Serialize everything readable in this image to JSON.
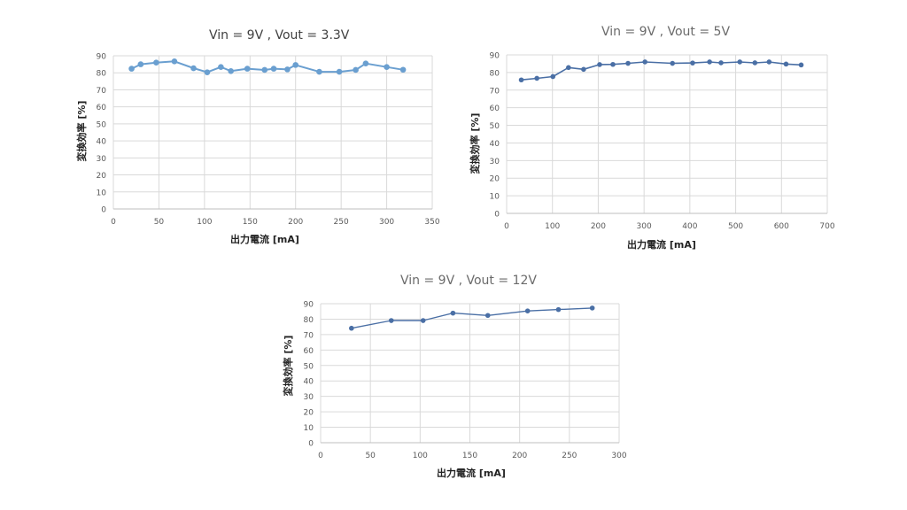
{
  "chart_data": [
    {
      "type": "line",
      "title": "Vin = 9V , Vout = 3.3V",
      "xlabel": "出力電流 [mA]",
      "ylabel": "変換効率 [%]",
      "xlim": [
        0,
        350
      ],
      "ylim": [
        0,
        90
      ],
      "xticks": [
        0,
        50,
        100,
        150,
        200,
        250,
        300,
        350
      ],
      "yticks": [
        0,
        10,
        20,
        30,
        40,
        50,
        60,
        70,
        80,
        90
      ],
      "grid": true,
      "legend": "none",
      "color": "#6a9fd0",
      "series": [
        {
          "name": "Vout = 3.3V",
          "x": [
            20,
            30,
            47,
            67,
            88,
            103,
            118,
            129,
            147,
            166,
            176,
            191,
            200,
            226,
            248,
            266,
            277,
            300,
            318
          ],
          "values": [
            82.4,
            85.0,
            86.0,
            86.7,
            82.7,
            80.3,
            83.4,
            81.0,
            82.4,
            81.7,
            82.4,
            82.0,
            84.6,
            80.6,
            80.6,
            81.7,
            85.5,
            83.4,
            81.8
          ]
        }
      ]
    },
    {
      "type": "line",
      "title": "Vin = 9V , Vout = 5V",
      "xlabel": "出力電流 [mA]",
      "ylabel": "変換効率 [%]",
      "xlim": [
        0,
        700
      ],
      "ylim": [
        0,
        90
      ],
      "xticks": [
        0,
        100,
        200,
        300,
        400,
        500,
        600,
        700
      ],
      "yticks": [
        0,
        10,
        20,
        30,
        40,
        50,
        60,
        70,
        80,
        90
      ],
      "grid": true,
      "legend": "none",
      "color": "#4a6fa5",
      "series": [
        {
          "name": "Vout = 5V",
          "x": [
            32,
            66,
            101,
            135,
            168,
            203,
            232,
            265,
            302,
            362,
            406,
            443,
            468,
            509,
            542,
            573,
            610,
            643
          ],
          "values": [
            75.8,
            76.7,
            77.7,
            82.8,
            81.8,
            84.5,
            84.6,
            85.2,
            86.0,
            85.2,
            85.4,
            86.0,
            85.5,
            86.0,
            85.5,
            86.0,
            84.8,
            84.3
          ]
        }
      ]
    },
    {
      "type": "line",
      "title": "Vin = 9V , Vout = 12V",
      "xlabel": "出力電流 [mA]",
      "ylabel": "変換効率 [%]",
      "xlim": [
        0,
        300
      ],
      "ylim": [
        0,
        90
      ],
      "xticks": [
        0,
        50,
        100,
        150,
        200,
        250,
        300
      ],
      "yticks": [
        0,
        10,
        20,
        30,
        40,
        50,
        60,
        70,
        80,
        90
      ],
      "grid": true,
      "legend": "none",
      "color": "#4a6fa5",
      "series": [
        {
          "name": "Vout = 12V",
          "x": [
            31,
            71,
            103,
            133,
            168,
            208,
            239,
            273
          ],
          "values": [
            74.1,
            79.1,
            79.1,
            83.9,
            82.4,
            85.3,
            86.2,
            87.2
          ]
        }
      ]
    }
  ]
}
